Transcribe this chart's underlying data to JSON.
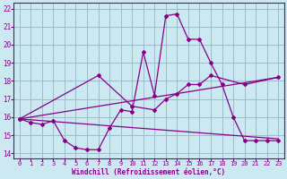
{
  "xlabel": "Windchill (Refroidissement éolien,°C)",
  "xlim": [
    -0.5,
    23.5
  ],
  "ylim": [
    13.7,
    22.3
  ],
  "yticks": [
    14,
    15,
    16,
    17,
    18,
    19,
    20,
    21,
    22
  ],
  "xticks": [
    0,
    1,
    2,
    3,
    4,
    5,
    6,
    7,
    8,
    9,
    10,
    11,
    12,
    13,
    14,
    15,
    16,
    17,
    18,
    19,
    20,
    21,
    22,
    23
  ],
  "bg_color": "#cce8f0",
  "grid_color": "#9bbccc",
  "line_color": "#880088",
  "line1_x": [
    0,
    1,
    2,
    3,
    4,
    5,
    6,
    7,
    8,
    9,
    10,
    11,
    12,
    13,
    14,
    15,
    16,
    17,
    18,
    19,
    20,
    21,
    22,
    23
  ],
  "line1_y": [
    15.9,
    15.7,
    15.6,
    15.8,
    14.7,
    14.3,
    14.2,
    14.2,
    15.4,
    16.4,
    16.3,
    19.6,
    17.2,
    21.6,
    21.7,
    20.3,
    20.3,
    19.0,
    17.8,
    16.0,
    14.7,
    14.7,
    14.7,
    14.7
  ],
  "line2_x": [
    0,
    7,
    10,
    12,
    13,
    14,
    15,
    16,
    17,
    20,
    23
  ],
  "line2_y": [
    15.9,
    18.3,
    16.6,
    16.4,
    17.0,
    17.3,
    17.8,
    17.8,
    18.3,
    17.8,
    18.2
  ],
  "line3_x": [
    0,
    23
  ],
  "line3_y": [
    15.9,
    18.2
  ],
  "line4_x": [
    0,
    23
  ],
  "line4_y": [
    15.9,
    14.8
  ]
}
